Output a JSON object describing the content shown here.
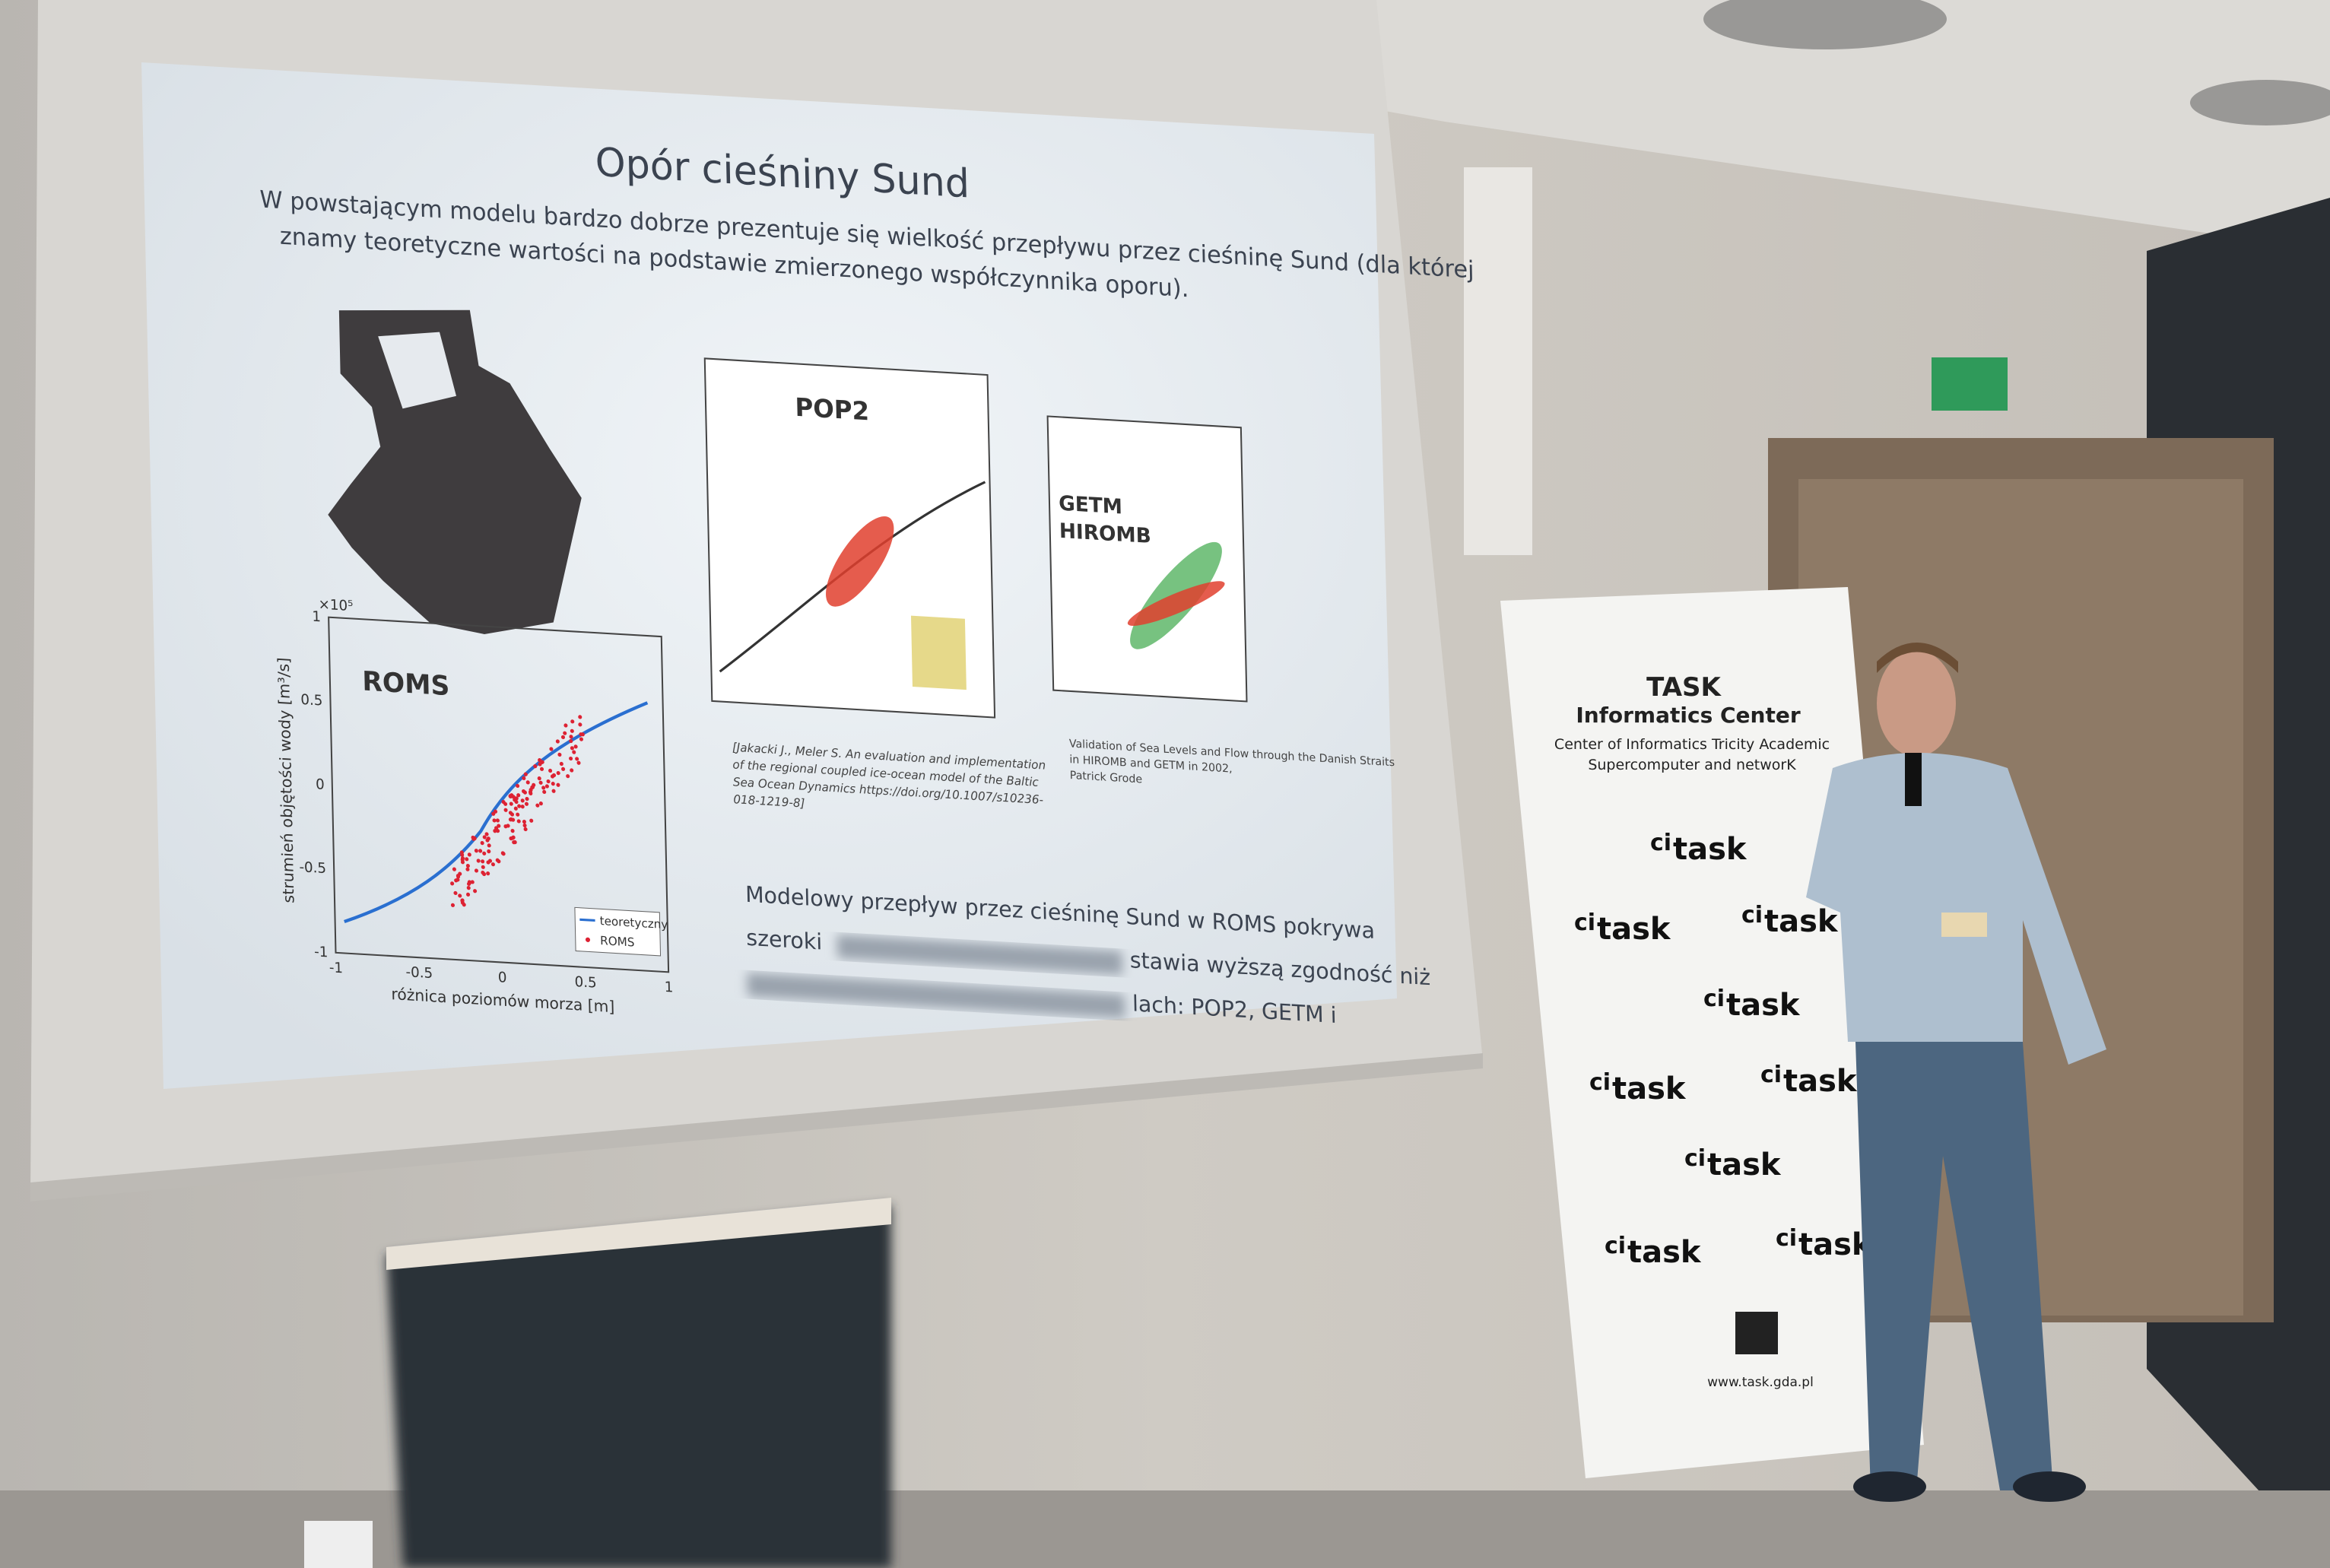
{
  "slide": {
    "title": "Opór cieśniny Sund",
    "intro": [
      "W powstającym modelu bardzo dobrze prezentuje się wielkość przepływu przez cieśninę Sund (dla której",
      "znamy teoretyczne wartości na podstawie zmierzonego współczynnika oporu)."
    ],
    "roms": {
      "label": "ROMS",
      "y_label": "strumień objętości wody [m³/s]",
      "x_label": "różnica poziomów morza [m]",
      "y_exponent": "×10⁵",
      "x_ticks": [
        "-1",
        "-0.5",
        "0",
        "0.5",
        "1"
      ],
      "y_ticks": [
        "1",
        "0.5",
        "0",
        "-0.5",
        "-1"
      ],
      "legend": [
        "teoretyczny",
        "ROMS"
      ]
    },
    "pop2": {
      "label": "POP2",
      "citation": [
        "[Jakacki J., Meler S. An evaluation and implementation",
        "of the regional coupled ice-ocean model of the Baltic",
        "Sea Ocean Dynamics https://doi.org/10.1007/s10236-",
        "018-1219-8]"
      ]
    },
    "getm": {
      "labels": [
        "GETM",
        "HIROMB"
      ],
      "caption": [
        "Validation of Sea Levels and Flow through the Danish Straits",
        "in HIROMB and GETM in 2002,",
        "Patrick Grode"
      ]
    },
    "conclusion": [
      "Modelowy przepływ przez cieśninę Sund w ROMS pokrywa",
      "szeroki",
      "stawia wyższą zgodność niż",
      "lach: POP2, GETM i"
    ]
  },
  "banner": {
    "title": "TASK",
    "subtitle": "Informatics Center",
    "description": [
      "Center of Informatics Tricity Academic",
      "Supercomputer and networK"
    ],
    "logo_prefix": "ci",
    "logo": "task",
    "url": "www.task.gda.pl"
  }
}
